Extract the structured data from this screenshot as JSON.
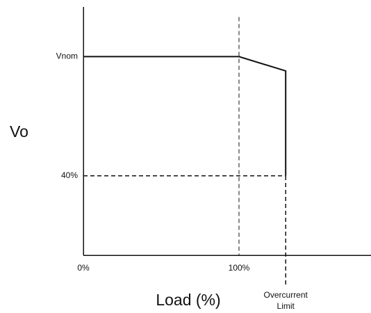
{
  "chart_data": {
    "type": "line",
    "title": "",
    "xlabel": "Load (%)",
    "ylabel": "Vo",
    "x_ticks": [
      {
        "value": 0,
        "label": "0%"
      },
      {
        "value": 100,
        "label": "100%"
      }
    ],
    "y_ticks": [
      {
        "value": 40,
        "label": "40%"
      },
      {
        "value": 100,
        "label": "Vnom"
      }
    ],
    "overcurrent_limit": {
      "value": 130,
      "label_line1": "Overcurrent",
      "label_line2": "Limit"
    },
    "series": [
      {
        "points": [
          {
            "x": 0,
            "y": 100
          },
          {
            "x": 100,
            "y": 100
          },
          {
            "x": 130,
            "y": 92.8
          },
          {
            "x": 130,
            "y": 40
          }
        ]
      }
    ],
    "guide_lines": [
      {
        "axis": "x",
        "value": 100
      },
      {
        "axis": "x",
        "value": 130
      },
      {
        "axis": "y",
        "value": 40
      }
    ],
    "xlim": [
      0,
      175
    ],
    "ylim": [
      0,
      125
    ],
    "grid": false,
    "legend": "none",
    "colors": {
      "line": "#111111",
      "background": "#ffffff"
    }
  }
}
